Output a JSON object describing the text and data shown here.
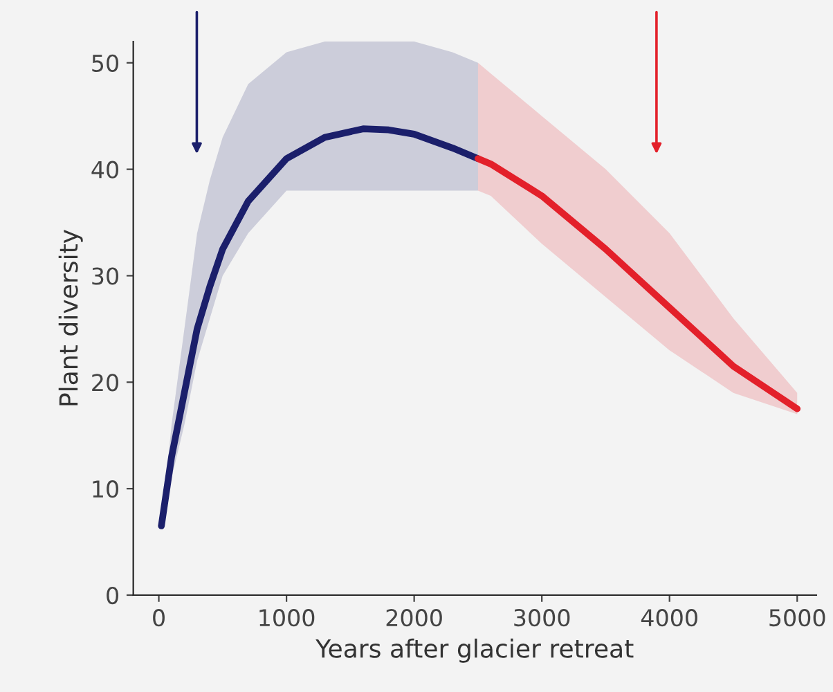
{
  "chart_data": {
    "type": "line",
    "xlabel": "Years after glacier retreat",
    "ylabel": "Plant diversity",
    "series": [
      {
        "color": "#1b1f6b",
        "x": [
          20,
          100,
          200,
          300,
          400,
          500,
          700,
          1000,
          1300,
          1600,
          1800,
          2000,
          2300,
          2500
        ],
        "values": [
          6.5,
          13,
          19,
          25,
          29,
          32.5,
          37,
          41,
          43,
          43.8,
          43.7,
          43.3,
          42,
          41
        ],
        "lower": [
          6.5,
          11,
          16,
          22,
          26,
          30,
          34,
          38,
          38,
          38,
          38,
          38,
          38,
          38
        ],
        "upper": [
          6.5,
          16,
          25,
          34,
          39,
          43,
          48,
          51,
          52,
          52,
          52,
          52,
          51,
          50
        ]
      },
      {
        "color": "#e3202a",
        "x": [
          2500,
          2600,
          3000,
          3500,
          4000,
          4500,
          5000
        ],
        "values": [
          41,
          40.5,
          37.5,
          32.5,
          27,
          21.5,
          17.5
        ],
        "lower": [
          38,
          37.5,
          33,
          28,
          23,
          19,
          17
        ],
        "upper": [
          50,
          49,
          45,
          40,
          34,
          26,
          19
        ]
      }
    ],
    "xlim": [
      -200,
      5150
    ],
    "ylim": [
      0,
      52
    ],
    "xticks": [
      0,
      1000,
      2000,
      3000,
      4000,
      5000
    ],
    "yticks": [
      0,
      10,
      20,
      30,
      40,
      50
    ],
    "grid": false,
    "legend": false
  }
}
